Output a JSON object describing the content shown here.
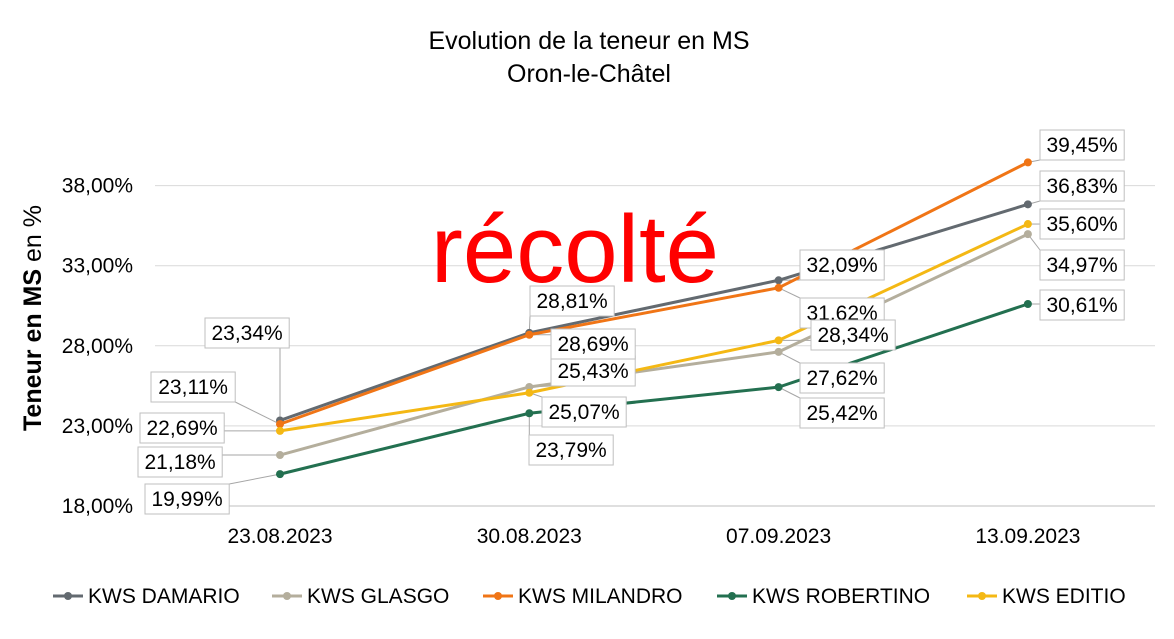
{
  "chart_data": {
    "type": "line",
    "title": "Evolution de la teneur en MS",
    "subtitle": "Oron-le-Châtel",
    "xlabel": "",
    "ylabel_bold": "Teneur en MS",
    "ylabel_rest": " en %",
    "categories": [
      "23.08.2023",
      "30.08.2023",
      "07.09.2023",
      "13.09.2023"
    ],
    "ylim": [
      18,
      40
    ],
    "yticks": [
      18,
      23,
      28,
      33,
      38
    ],
    "ytick_labels": [
      "18,00%",
      "23,00%",
      "28,00%",
      "33,00%",
      "38,00%"
    ],
    "grid": true,
    "legend_position": "bottom",
    "annotation": "récolté",
    "series": [
      {
        "name": "KWS DAMARIO",
        "color": "#636a70",
        "values": [
          23.34,
          28.81,
          32.09,
          36.83
        ],
        "labels": [
          "23,34%",
          "28,81%",
          "32,09%",
          "36,83%"
        ]
      },
      {
        "name": "KWS GLASGO",
        "color": "#b4ae9c",
        "values": [
          21.18,
          25.43,
          27.62,
          34.97
        ],
        "labels": [
          "21,18%",
          "25,43%",
          "27,62%",
          "34,97%"
        ]
      },
      {
        "name": "KWS MILANDRO",
        "color": "#f07516",
        "values": [
          23.11,
          28.69,
          31.62,
          39.45
        ],
        "labels": [
          "23,11%",
          "28,69%",
          "31,62%",
          "39,45%"
        ]
      },
      {
        "name": "KWS ROBERTINO",
        "color": "#237050",
        "values": [
          19.99,
          23.79,
          25.42,
          30.61
        ],
        "labels": [
          "19,99%",
          "23,79%",
          "25,42%",
          "30,61%"
        ]
      },
      {
        "name": "KWS EDITIO",
        "color": "#f4b814",
        "values": [
          22.69,
          25.07,
          28.34,
          35.6
        ],
        "labels": [
          "22,69%",
          "25,07%",
          "28,34%",
          "35,60%"
        ]
      }
    ]
  }
}
